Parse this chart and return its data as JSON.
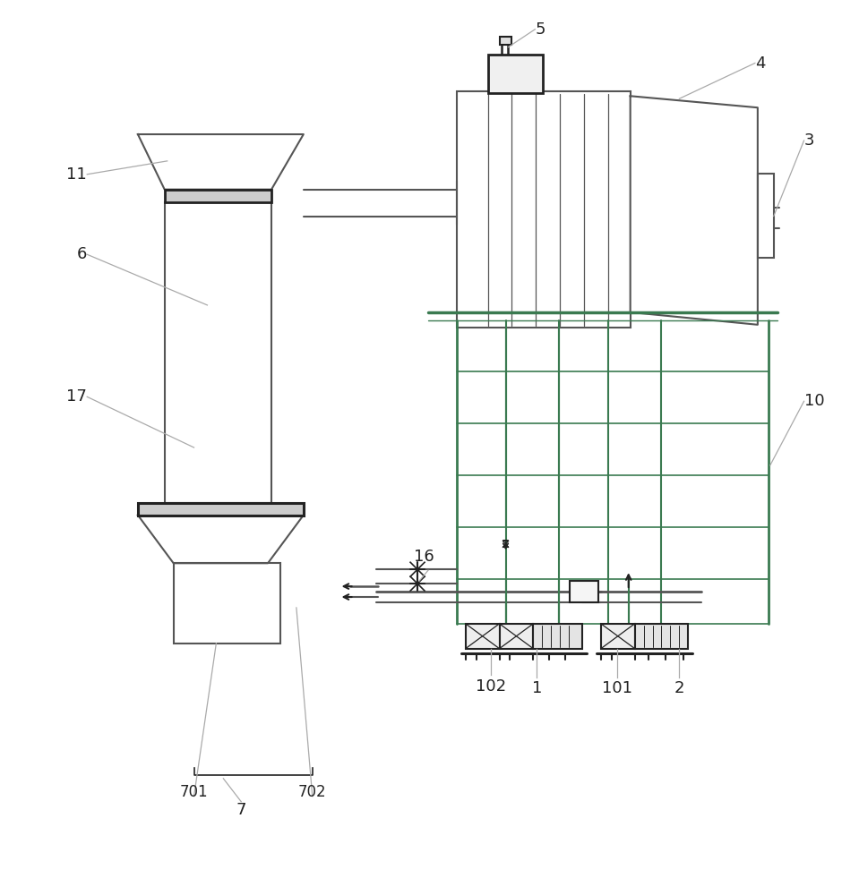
{
  "bg_color": "#ffffff",
  "line_color": "#555555",
  "dark_color": "#222222",
  "green_color": "#3a7a50",
  "label_fs": 13,
  "leader_color": "#aaaaaa",
  "fig_width": 9.59,
  "fig_height": 10.0
}
